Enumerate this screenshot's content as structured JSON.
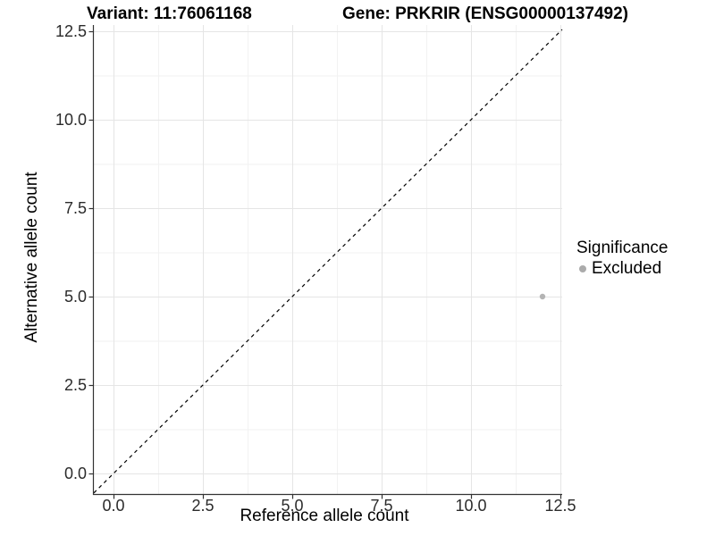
{
  "header": {
    "variant_title": "Variant: 11:76061168",
    "gene_title": "Gene: PRKRIR (ENSG00000137492)"
  },
  "chart_data": {
    "type": "scatter",
    "title_variant": "Variant: 11:76061168",
    "title_gene": "Gene: PRKRIR (ENSG00000137492)",
    "xlabel": "Reference allele count",
    "ylabel": "Alternative allele count",
    "xlim": [
      -0.55,
      12.55
    ],
    "ylim": [
      -0.58,
      12.7
    ],
    "x_ticks": [
      0,
      2.5,
      5,
      7.5,
      10,
      12.5
    ],
    "x_tick_labels": [
      "0.0",
      "2.5",
      "5.0",
      "7.5",
      "10.0",
      "12.5"
    ],
    "y_ticks": [
      0,
      2.5,
      5,
      7.5,
      10,
      12.5
    ],
    "y_tick_labels": [
      "0.0",
      "2.5",
      "5.0",
      "7.5",
      "10.0",
      "12.5"
    ],
    "x_minor": [
      1.25,
      3.75,
      6.25,
      8.75,
      11.25
    ],
    "y_minor": [
      1.25,
      3.75,
      6.25,
      8.75,
      11.25
    ],
    "grid": "major+minor",
    "points": [
      {
        "x": 12,
        "y": 5,
        "significance": "Excluded"
      }
    ],
    "reference_line": {
      "type": "identity",
      "slope": 1,
      "intercept": 0,
      "linetype": "dashed"
    },
    "legend": {
      "title": "Significance",
      "position": "right",
      "items": [
        {
          "label": "Excluded",
          "color": "#ababab",
          "shape": "circle"
        }
      ]
    },
    "style": {
      "axis": "#333333",
      "major_grid": "#e5e5e5",
      "minor_grid": "#f2f2f2",
      "abline": "#000000",
      "point": "#b4b4b4",
      "tick_text": "#2b2b2b"
    }
  }
}
